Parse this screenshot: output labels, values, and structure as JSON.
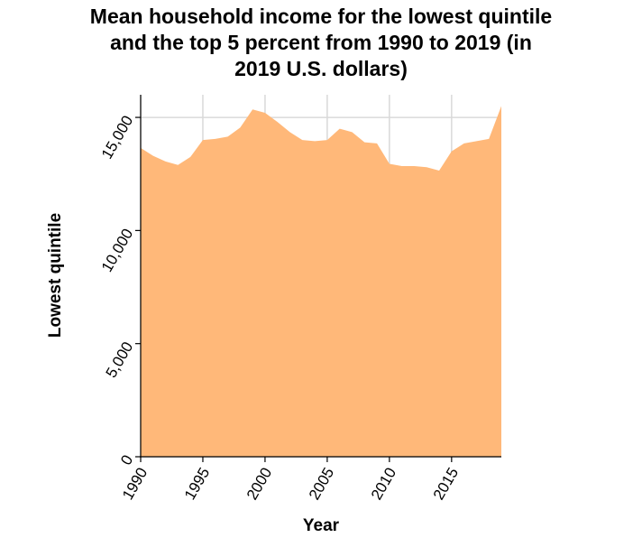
{
  "chart_data": {
    "type": "area",
    "title_lines": [
      "Mean household income for the lowest quintile",
      "and the top 5 percent from 1990 to 2019 (in",
      "2019 U.S. dollars)"
    ],
    "xlabel": "Year",
    "ylabel": "Lowest quintile",
    "xlim": [
      1990,
      2019
    ],
    "ylim": [
      0,
      16000
    ],
    "x_ticks": [
      1990,
      1995,
      2000,
      2005,
      2010,
      2015
    ],
    "x_tick_labels": [
      "1990",
      "1995",
      "2000",
      "2005",
      "2010",
      "2015"
    ],
    "y_ticks": [
      0,
      5000,
      10000,
      15000
    ],
    "y_tick_labels": [
      "0",
      "5,000",
      "10,000",
      "15,000"
    ],
    "grid": true,
    "fill_color": "#ffb879",
    "series": [
      {
        "x": [
          1990,
          1991,
          1992,
          1993,
          1994,
          1995,
          1996,
          1997,
          1998,
          1999,
          2000,
          2001,
          2002,
          2003,
          2004,
          2005,
          2006,
          2007,
          2008,
          2009,
          2010,
          2011,
          2012,
          2013,
          2014,
          2015,
          2016,
          2017,
          2018,
          2019
        ],
        "values": [
          13650,
          13300,
          13050,
          12900,
          13250,
          14000,
          14050,
          14150,
          14550,
          15350,
          15200,
          14800,
          14350,
          14000,
          13950,
          14000,
          14500,
          14350,
          13900,
          13850,
          12950,
          12850,
          12850,
          12800,
          12650,
          13500,
          13850,
          13950,
          14050,
          15500
        ]
      }
    ]
  }
}
